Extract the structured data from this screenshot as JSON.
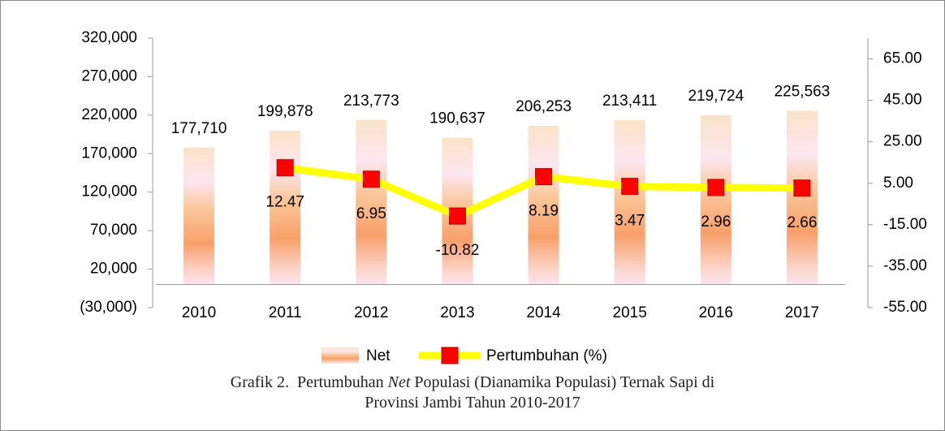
{
  "chart_data": {
    "type": "bar_line",
    "categories": [
      "2010",
      "2011",
      "2012",
      "2013",
      "2014",
      "2015",
      "2016",
      "2017"
    ],
    "series": [
      {
        "name": "Net",
        "color": "#f9a66c",
        "values": [
          177710,
          199878,
          213773,
          190637,
          206253,
          213411,
          219724,
          225563
        ],
        "value_labels": [
          "177,710",
          "199,878",
          "213,773",
          "190,637",
          "206,253",
          "213,411",
          "219,724",
          "225,563"
        ]
      },
      {
        "name": "Pertumbuhan (%)",
        "color": "#ffff00",
        "marker_color": "#ff0000",
        "axis": "y2",
        "values": [
          null,
          12.47,
          6.95,
          -10.82,
          8.19,
          3.47,
          2.96,
          2.66
        ]
      }
    ],
    "ylim": [
      -30000,
      320000
    ],
    "yticks": [
      {
        "value": -30000,
        "label": "(30,000)"
      },
      {
        "value": 20000,
        "label": "20,000"
      },
      {
        "value": 70000,
        "label": "70,000"
      },
      {
        "value": 120000,
        "label": "120,000"
      },
      {
        "value": 170000,
        "label": "170,000"
      },
      {
        "value": 220000,
        "label": "220,000"
      },
      {
        "value": 270000,
        "label": "270,000"
      },
      {
        "value": 320000,
        "label": "320,000"
      }
    ],
    "y2lim": [
      -55,
      75
    ],
    "y2ticks": [
      {
        "value": -55,
        "label": "-55.00"
      },
      {
        "value": -35,
        "label": "-35.00"
      },
      {
        "value": -15,
        "label": "-15.00"
      },
      {
        "value": 5,
        "label": "5.00"
      },
      {
        "value": 25,
        "label": "25.00"
      },
      {
        "value": 45,
        "label": "45.00"
      },
      {
        "value": 65,
        "label": "65.00"
      }
    ],
    "legend": "bottom",
    "caption": [
      [
        "Grafik 2.  Pertumbuhan ",
        "Net",
        " Populasi (Dianamika Populasi) Ternak Sapi di"
      ],
      [
        "Provinsi Jambi Tahun 2010-2017"
      ]
    ]
  }
}
